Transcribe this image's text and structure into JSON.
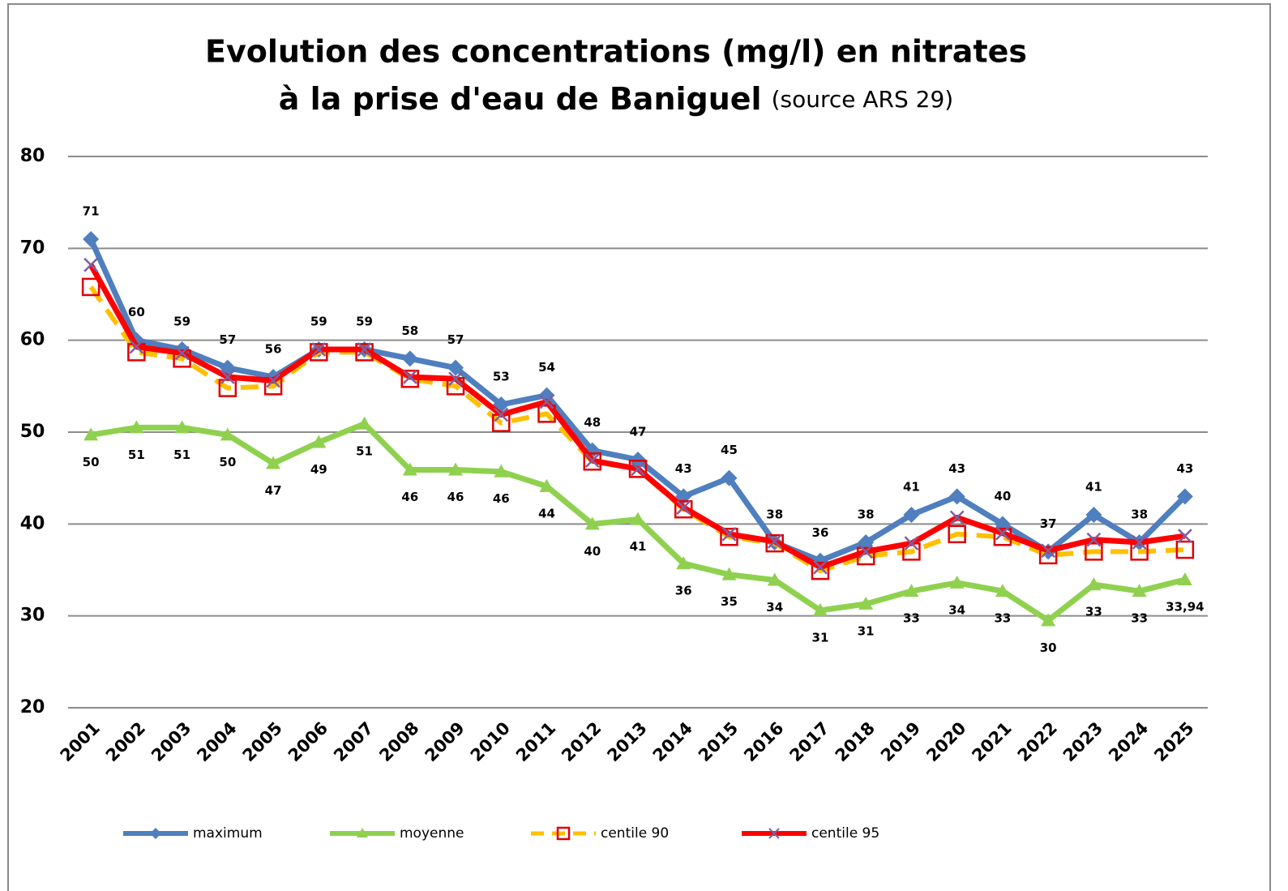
{
  "chart_data": {
    "type": "line",
    "title": [
      "Evolution des concentrations (mg/l) en nitrates",
      "à la prise d'eau de Baniguel"
    ],
    "subtitle": "(source ARS 29)",
    "categories": [
      "2001",
      "2002",
      "2003",
      "2004",
      "2005",
      "2006",
      "2007",
      "2008",
      "2009",
      "2010",
      "2011",
      "2012",
      "2013",
      "2014",
      "2015",
      "2016",
      "2017",
      "2018",
      "2019",
      "2020",
      "2021",
      "2022",
      "2023",
      "2024",
      "2025"
    ],
    "ylim": [
      20,
      80
    ],
    "yticks": [
      20,
      30,
      40,
      50,
      60,
      70,
      80
    ],
    "grid": true,
    "legend": "bottom",
    "series": [
      {
        "name": "maximum",
        "color": "#4f7fbe",
        "marker": "diamond",
        "data_labels": "above",
        "values": [
          71,
          60,
          59,
          57,
          56,
          59,
          59,
          58,
          57,
          53,
          54,
          48,
          47,
          43,
          45,
          38,
          36,
          38,
          41,
          43,
          40,
          37,
          41,
          38,
          43
        ]
      },
      {
        "name": "moyenne",
        "color": "#8fd14f",
        "label_color": "#2e8b1a",
        "marker": "triangle",
        "data_labels": "below",
        "values": [
          49.7,
          50.5,
          50.5,
          49.7,
          46.6,
          48.9,
          50.9,
          45.9,
          45.9,
          45.7,
          44.1,
          40.0,
          40.5,
          35.7,
          34.5,
          33.9,
          30.6,
          31.3,
          32.7,
          33.6,
          32.7,
          29.5,
          33.4,
          32.7,
          33.94
        ],
        "value_labels": [
          "50",
          "51",
          "51",
          "50",
          "47",
          "49",
          "51",
          "46",
          "46",
          "46",
          "44",
          "40",
          "41",
          "36",
          "35",
          "34",
          "31",
          "31",
          "33",
          "34",
          "33",
          "30",
          "33",
          "33",
          "33,94"
        ]
      },
      {
        "name": "centile 90",
        "color": "#ffc000",
        "marker": "square",
        "marker_color": "#e00000",
        "dash": true,
        "values": [
          65.8,
          58.7,
          58.0,
          54.8,
          55.0,
          58.7,
          58.7,
          55.8,
          55.0,
          51.0,
          52.0,
          46.8,
          46.0,
          41.6,
          38.6,
          37.9,
          34.9,
          36.5,
          37.0,
          38.9,
          38.6,
          36.6,
          37.0,
          37.0,
          37.2
        ]
      },
      {
        "name": "centile 95",
        "color": "#ff0000",
        "marker": "cross",
        "marker_color": "#7f5fa0",
        "values": [
          68.2,
          59.3,
          58.6,
          56.0,
          55.6,
          59.0,
          59.0,
          56.0,
          55.8,
          51.9,
          53.3,
          46.9,
          46.0,
          41.8,
          38.9,
          38.1,
          35.3,
          37.0,
          37.9,
          40.7,
          39.0,
          37.1,
          38.3,
          38.0,
          38.7
        ]
      }
    ]
  }
}
